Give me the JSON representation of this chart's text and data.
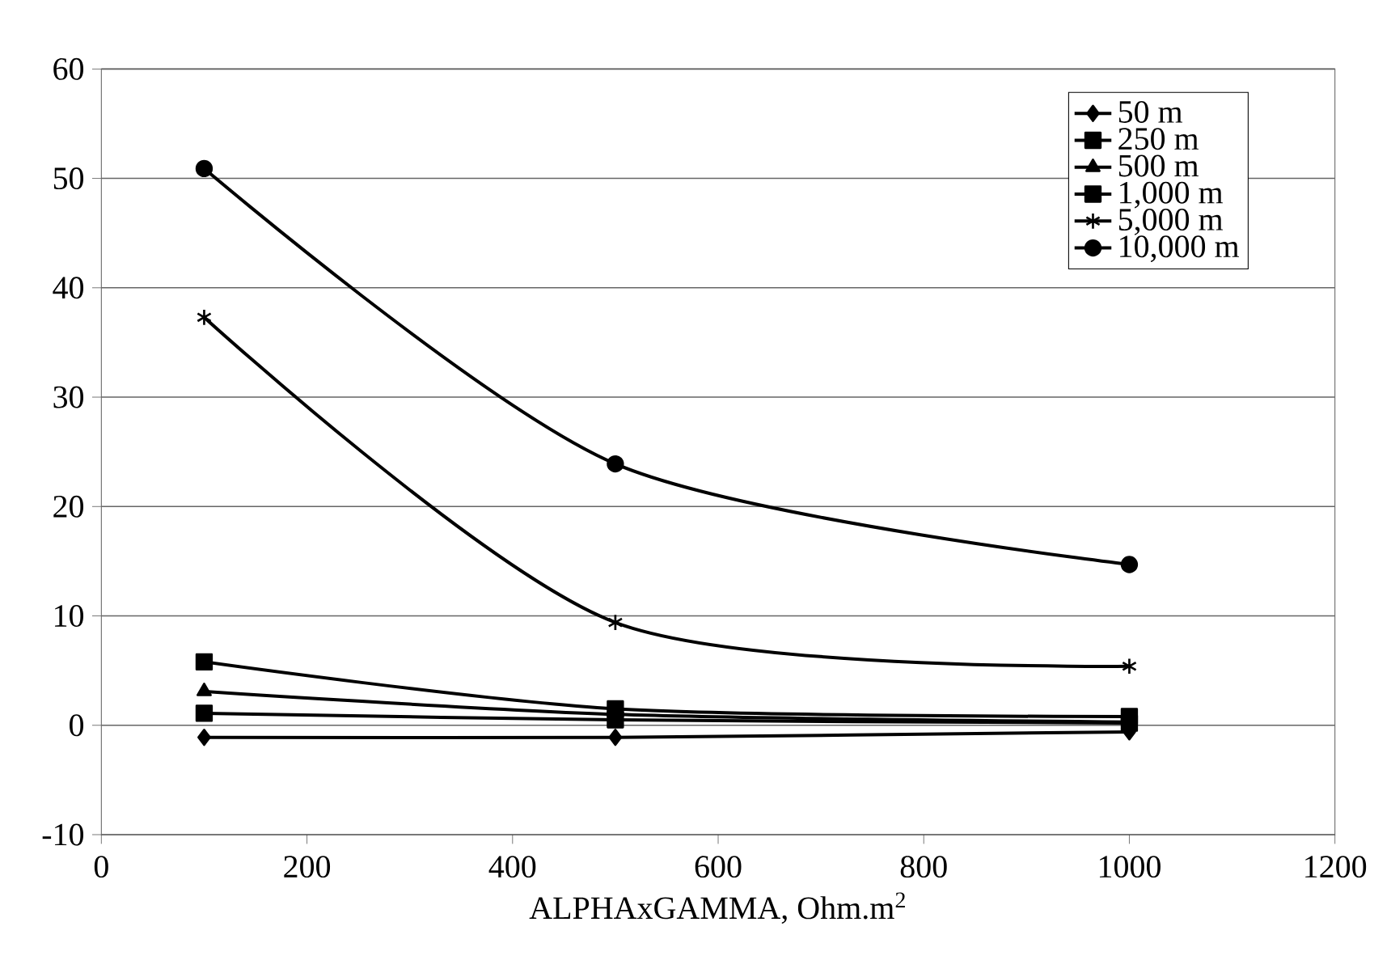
{
  "chart_data": {
    "type": "line",
    "xlabel": "ALPHAxGAMMA, Ohm.m$^{2}$",
    "x": [
      100,
      500,
      1000
    ],
    "xlim": [
      0,
      1200
    ],
    "xticks": [
      0,
      200,
      400,
      600,
      800,
      1000,
      1200
    ],
    "ylim": [
      -10,
      60
    ],
    "yticks": [
      -10,
      0,
      10,
      20,
      30,
      40,
      50,
      60
    ],
    "grid": "y",
    "legend": "top right",
    "line_style": "solid",
    "series": [
      {
        "name": "50 m",
        "color": "#000000",
        "marker": "diamond",
        "values": [
          -1.1,
          -1.1,
          -0.6
        ]
      },
      {
        "name": "250 m",
        "color": "#000000",
        "marker": "square",
        "values": [
          1.1,
          0.5,
          0.2
        ]
      },
      {
        "name": "500 m",
        "color": "#000000",
        "marker": "triangle",
        "values": [
          3.1,
          1.0,
          0.3
        ]
      },
      {
        "name": "1,000 m",
        "color": "#000000",
        "marker": "square",
        "values": [
          5.8,
          1.5,
          0.8
        ]
      },
      {
        "name": "5,000 m",
        "color": "#000000",
        "marker": "cross",
        "values": [
          37.3,
          9.4,
          5.4
        ]
      },
      {
        "name": "10,000 m",
        "color": "#000000",
        "marker": "circle",
        "values": [
          50.9,
          23.9,
          14.7
        ]
      }
    ]
  }
}
